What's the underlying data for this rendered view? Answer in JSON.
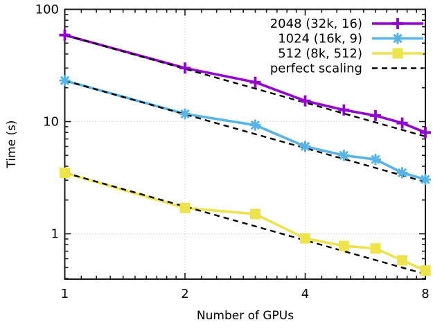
{
  "figure": {
    "xlabel": "Number of GPUs",
    "ylabel": "Time (s)"
  },
  "chart_data": {
    "type": "line",
    "title": "",
    "xlabel": "Number of GPUs",
    "ylabel": "Time (s)",
    "x_scale": "log2",
    "y_scale": "log10",
    "xlim": [
      1,
      8
    ],
    "ylim": [
      0.3945,
      100
    ],
    "x_major_ticks": [
      1,
      2,
      4,
      8
    ],
    "x_major_tick_labels": [
      "1",
      "2",
      "4",
      "8"
    ],
    "y_major_ticks": [
      1,
      10,
      100
    ],
    "y_major_tick_labels": [
      "1",
      "10",
      "100"
    ],
    "grid_x": [
      2,
      4
    ],
    "grid_y": [
      1,
      10
    ],
    "grid_style": "dotted",
    "legend_position": "inside-top-right",
    "x": [
      1,
      2,
      3,
      4,
      5,
      6,
      7,
      8
    ],
    "series": [
      {
        "name": "2048 (32k, 16)",
        "color": "#9400d3",
        "marker": "plus",
        "values": [
          59,
          30,
          22.4,
          15.3,
          12.7,
          11.3,
          9.7,
          8.0
        ]
      },
      {
        "name": "1024 (16k, 9)",
        "color": "#56b4e9",
        "marker": "asterisk",
        "values": [
          23.2,
          11.7,
          9.3,
          6.0,
          5.0,
          4.6,
          3.5,
          3.05
        ]
      },
      {
        "name": "512 (8k, 512)",
        "color": "#ece44a",
        "marker": "square",
        "values": [
          3.5,
          1.7,
          1.5,
          0.91,
          0.78,
          0.74,
          0.58,
          0.47
        ]
      }
    ],
    "reference": {
      "name": "perfect scaling",
      "color": "#000000",
      "style": "dashed",
      "rule": "first_value_of_each_series_divided_by_x"
    }
  },
  "style": {
    "border_color": "#1a1a1a",
    "grid_color": "#c9c9c9",
    "tick_label_size": 18,
    "legend_font_size": 18
  }
}
